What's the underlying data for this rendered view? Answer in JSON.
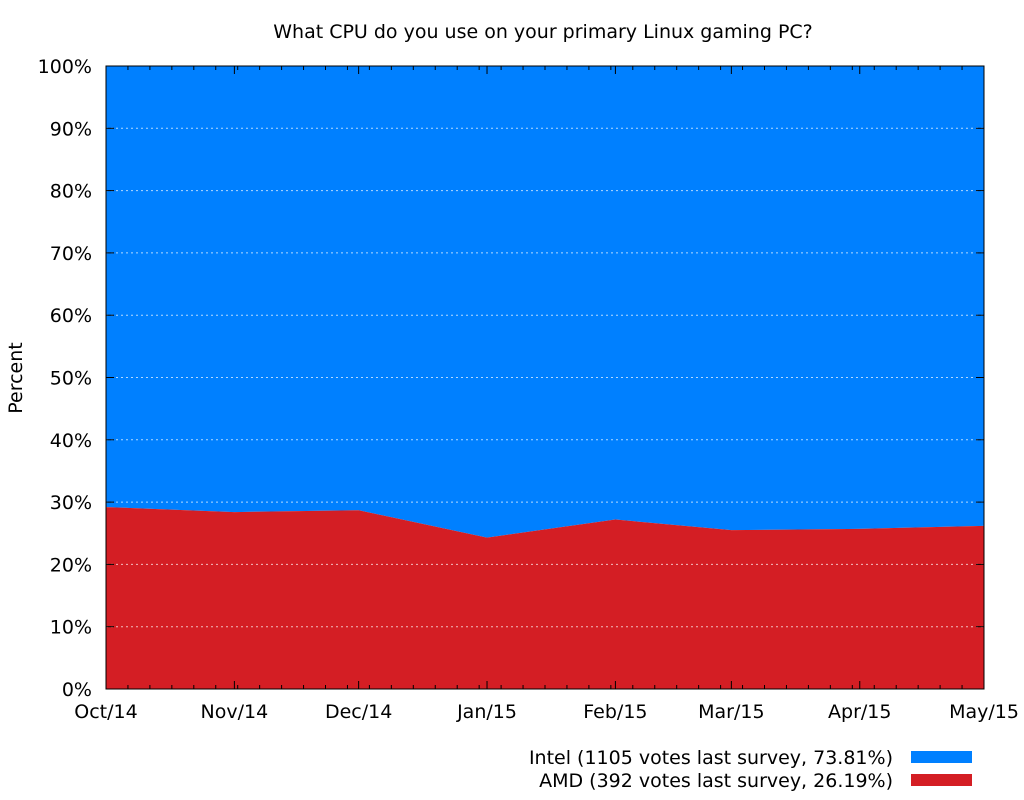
{
  "chart_data": {
    "type": "area",
    "stacked": true,
    "percent": true,
    "title": "What CPU do you use on your primary Linux gaming PC?",
    "xlabel": "",
    "ylabel": "Percent",
    "ylim": [
      0,
      100
    ],
    "y_ticks": [
      "0%",
      "10%",
      "20%",
      "30%",
      "40%",
      "50%",
      "60%",
      "70%",
      "80%",
      "90%",
      "100%"
    ],
    "x_dates": [
      "2014-10-01",
      "2014-11-01",
      "2014-12-01",
      "2015-01-01",
      "2015-02-01",
      "2015-03-01",
      "2015-04-01",
      "2015-05-01"
    ],
    "x_tick_labels": [
      "Oct/14",
      "Nov/14",
      "Dec/14",
      "Jan/15",
      "Feb/15",
      "Mar/15",
      "Apr/15",
      "May/15"
    ],
    "grid": true,
    "legend_position": "bottom-right",
    "series": [
      {
        "name": "Intel (1105 votes last survey, 73.81%)",
        "color": "#0080ff",
        "points": [
          {
            "date": "2014-10-01",
            "value": 70.8
          },
          {
            "date": "2014-11-01",
            "value": 71.6
          },
          {
            "date": "2014-12-01",
            "value": 71.3
          },
          {
            "date": "2015-01-01",
            "value": 75.7
          },
          {
            "date": "2015-02-01",
            "value": 72.8
          },
          {
            "date": "2015-03-01",
            "value": 74.5
          },
          {
            "date": "2015-04-01",
            "value": 74.3
          },
          {
            "date": "2015-05-01",
            "value": 73.81
          }
        ]
      },
      {
        "name": "AMD (392 votes last survey, 26.19%)",
        "color": "#d41e24",
        "points": [
          {
            "date": "2014-10-01",
            "value": 29.2
          },
          {
            "date": "2014-11-01",
            "value": 28.4
          },
          {
            "date": "2014-12-01",
            "value": 28.7
          },
          {
            "date": "2015-01-01",
            "value": 24.3
          },
          {
            "date": "2015-02-01",
            "value": 27.2
          },
          {
            "date": "2015-03-01",
            "value": 25.5
          },
          {
            "date": "2015-04-01",
            "value": 25.7
          },
          {
            "date": "2015-05-01",
            "value": 26.19
          }
        ]
      }
    ]
  }
}
